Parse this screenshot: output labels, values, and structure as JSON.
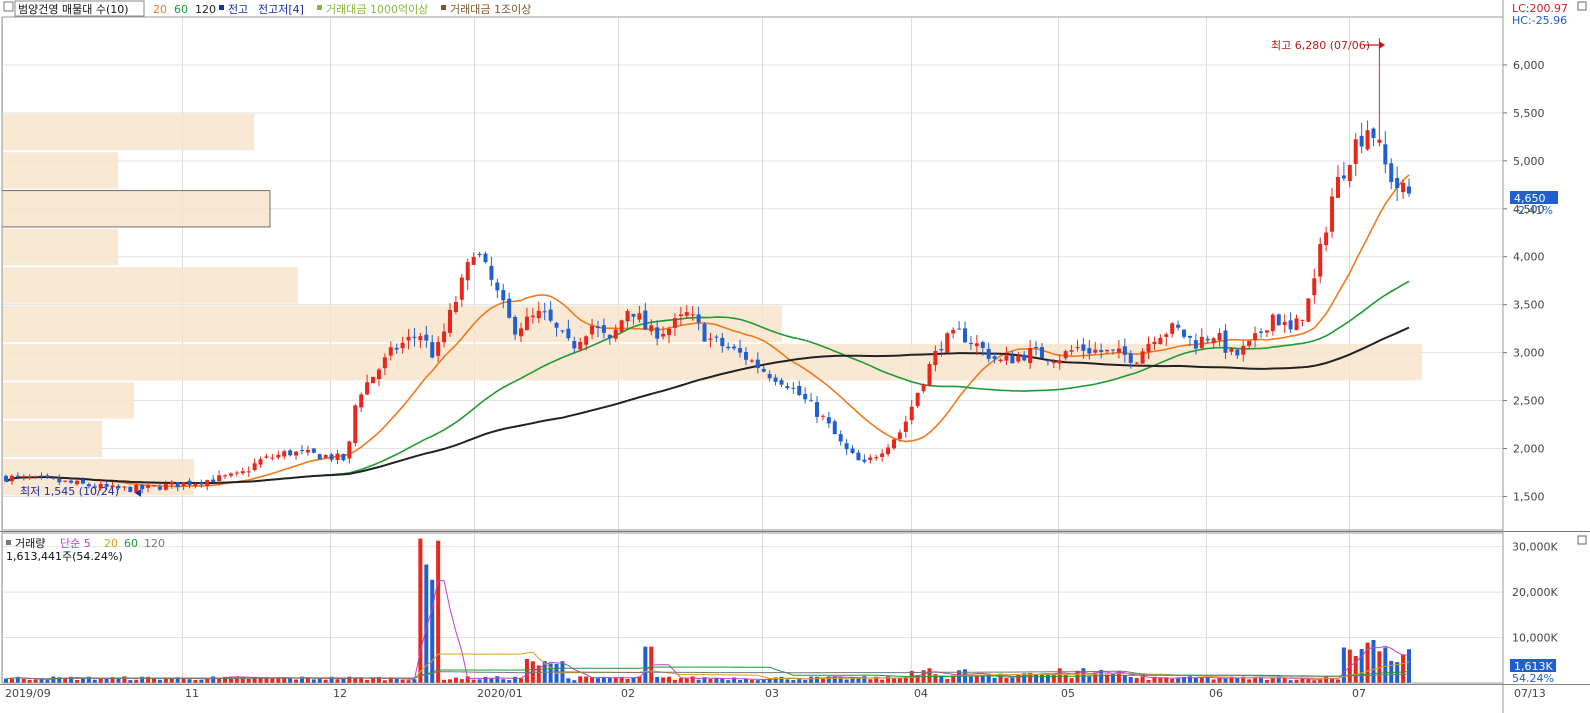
{
  "header": {
    "title": "범양건영 매물대 수(10)",
    "ma_items": [
      {
        "label": "20",
        "color": "#f07a1c"
      },
      {
        "label": "60",
        "color": "#1f9a34"
      },
      {
        "label": "120",
        "color": "#222222"
      }
    ],
    "indicators": [
      {
        "label": "전고",
        "color": "#1b2ea8"
      },
      {
        "label": "전고저[4]",
        "color": "#1b2ea8"
      },
      {
        "label": "거래대금 1000억이상",
        "color": "#8db43a"
      },
      {
        "label": "거래대금 1조이상",
        "color": "#7a5a2c"
      }
    ]
  },
  "right_header": {
    "lc": "LC:200.97",
    "hc": "HC:-25.96"
  },
  "price_badge": {
    "value": "4,650",
    "change": "-2.41%",
    "color": "#1f5fd0"
  },
  "volume_badge": {
    "value": "1,613K",
    "change": "54.24%",
    "color": "#1f5fd0"
  },
  "volume_header": {
    "title": "거래량",
    "sma_label": "단순 5",
    "ma_items": [
      {
        "label": "5",
        "color": "#c23ec8"
      },
      {
        "label": "20",
        "color": "#d8a21a"
      },
      {
        "label": "60",
        "color": "#1f9a34"
      },
      {
        "label": "120",
        "color": "#777777"
      }
    ],
    "info": "1,613,441주(54.24%)"
  },
  "chart_data": [
    {
      "type": "candlestick",
      "title": "범양건영 매물대 수(10)",
      "ylim": [
        1150,
        6500
      ],
      "y_ticks": [
        1500,
        2000,
        2500,
        3000,
        3500,
        4000,
        4500,
        5000,
        5500,
        6000
      ],
      "y_tick_labels": [
        "1,500",
        "2,000",
        "2,500",
        "3,000",
        "3,500",
        "4,000",
        "4,500",
        "5,000",
        "5,500",
        "6,000"
      ],
      "x_labels": [
        "2019/09",
        "11",
        "12",
        "2020/01",
        "02",
        "03",
        "04",
        "05",
        "06",
        "07",
        "07/13"
      ],
      "annotations": {
        "high": {
          "label": "최고 6,280 (07/06)",
          "value": 6280
        },
        "low": {
          "label": "최저 1,545 (10/24)",
          "value": 1545
        }
      },
      "volume_profile_bins": [
        {
          "low": 5100,
          "high": 5500,
          "amount": 0.63
        },
        {
          "low": 4700,
          "high": 5100,
          "amount": 0.29
        },
        {
          "low": 4300,
          "high": 4700,
          "amount": 0.67
        },
        {
          "low": 3900,
          "high": 4300,
          "amount": 0.29
        },
        {
          "low": 3500,
          "high": 3900,
          "amount": 0.74
        },
        {
          "low": 3100,
          "high": 3500,
          "amount": 1.95
        },
        {
          "low": 2700,
          "high": 3100,
          "amount": 3.55
        },
        {
          "low": 2300,
          "high": 2700,
          "amount": 0.33
        },
        {
          "low": 1900,
          "high": 2300,
          "amount": 0.25
        },
        {
          "low": 1500,
          "high": 1900,
          "amount": 0.48
        }
      ],
      "ma_lines": [
        {
          "name": "20",
          "color": "#f07a1c"
        },
        {
          "name": "60",
          "color": "#1f9a34"
        },
        {
          "name": "120",
          "color": "#222222"
        }
      ]
    },
    {
      "type": "bar",
      "title": "거래량",
      "ylim": [
        0,
        33000
      ],
      "y_ticks": [
        10000,
        20000,
        30000
      ],
      "y_tick_labels": [
        "10,000K",
        "20,000K",
        "30,000K"
      ]
    }
  ]
}
